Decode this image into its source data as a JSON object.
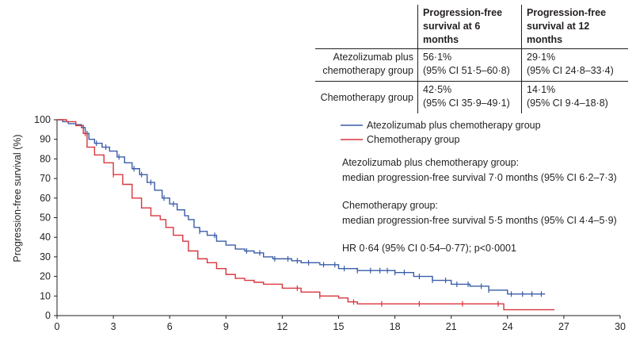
{
  "table": {
    "headers": [
      "Progression-free survival at 6 months",
      "Progression-free survival at 12 months"
    ],
    "rows": [
      {
        "label": "Atezolizumab plus chemotherapy group",
        "pfs6": "56·1%",
        "pfs6_ci": "(95% CI 51·5–60·8)",
        "pfs12": "29·1%",
        "pfs12_ci": "(95% CI 24·8–33·4)"
      },
      {
        "label": "Chemotherapy group",
        "pfs6": "42·5%",
        "pfs6_ci": "(95% CI 35·9–49·1)",
        "pfs12": "14·1%",
        "pfs12_ci": "(95% CI 9·4–18·8)"
      }
    ]
  },
  "annotations": {
    "atezo_title": "Atezolizumab plus chemotherapy group:",
    "atezo_median": "median progression-free survival  7·0 months (95% CI 6·2–7·3)",
    "chemo_title": "Chemotherapy group:",
    "chemo_median": "median progression-free survival 5·5 months (95% CI 4·4–5·9)",
    "hr": "HR 0·64 (95% CI 0·54–0·77); p<0·0001"
  },
  "chart_data": {
    "type": "line",
    "title": "",
    "xlabel": "",
    "ylabel": "Progression-free survival  (%)",
    "xlim": [
      0,
      30
    ],
    "ylim": [
      0,
      100
    ],
    "x_ticks": [
      0,
      3,
      6,
      9,
      12,
      15,
      18,
      21,
      24,
      27,
      30
    ],
    "y_ticks": [
      0,
      10,
      20,
      30,
      40,
      50,
      60,
      70,
      80,
      90,
      100
    ],
    "grid": false,
    "legend_position": "top-right",
    "series": [
      {
        "name": "Atezolizumab plus chemotherapy group",
        "color": "#3a5da8",
        "points": [
          [
            0,
            100
          ],
          [
            0.3,
            99
          ],
          [
            0.6,
            98
          ],
          [
            1.0,
            97.5
          ],
          [
            1.3,
            96
          ],
          [
            1.5,
            93
          ],
          [
            1.7,
            90
          ],
          [
            2.0,
            88
          ],
          [
            2.4,
            86
          ],
          [
            2.8,
            84
          ],
          [
            3.2,
            81
          ],
          [
            3.6,
            78
          ],
          [
            4.0,
            75
          ],
          [
            4.4,
            72
          ],
          [
            4.8,
            68
          ],
          [
            5.2,
            64
          ],
          [
            5.6,
            60
          ],
          [
            6.0,
            57
          ],
          [
            6.4,
            54
          ],
          [
            6.8,
            51
          ],
          [
            7.0,
            49
          ],
          [
            7.3,
            45
          ],
          [
            7.6,
            43
          ],
          [
            8.0,
            41
          ],
          [
            8.5,
            38
          ],
          [
            9.0,
            36
          ],
          [
            9.5,
            34
          ],
          [
            10.0,
            33
          ],
          [
            10.5,
            32
          ],
          [
            11.0,
            30
          ],
          [
            11.5,
            29
          ],
          [
            12.0,
            29
          ],
          [
            12.5,
            28
          ],
          [
            13.0,
            27
          ],
          [
            14.0,
            26
          ],
          [
            15.0,
            24
          ],
          [
            16.0,
            23
          ],
          [
            17.0,
            23
          ],
          [
            18.0,
            22
          ],
          [
            19.0,
            20
          ],
          [
            20.0,
            18
          ],
          [
            21.0,
            16
          ],
          [
            22.0,
            15
          ],
          [
            23.0,
            13
          ],
          [
            24.0,
            11
          ],
          [
            25.0,
            11
          ],
          [
            26.0,
            11
          ]
        ],
        "censor_x": [
          1.4,
          1.6,
          2.1,
          2.6,
          3.3,
          4.1,
          4.5,
          5.0,
          5.7,
          6.2,
          7.6,
          8.4,
          10.1,
          10.8,
          11.6,
          12.3,
          12.8,
          13.4,
          14.2,
          14.8,
          15.3,
          16.0,
          16.7,
          17.2,
          17.6,
          18.0,
          18.5,
          19.3,
          20.0,
          20.7,
          21.3,
          21.9,
          22.6,
          23.0,
          24.2,
          24.8,
          25.3,
          25.8
        ]
      },
      {
        "name": "Chemotherapy group",
        "color": "#d9363e",
        "points": [
          [
            0,
            100
          ],
          [
            0.5,
            99
          ],
          [
            1.0,
            97
          ],
          [
            1.4,
            93
          ],
          [
            1.6,
            86
          ],
          [
            2.0,
            82
          ],
          [
            2.5,
            78
          ],
          [
            3.0,
            72
          ],
          [
            3.5,
            67
          ],
          [
            4.0,
            60
          ],
          [
            4.5,
            55
          ],
          [
            5.0,
            51
          ],
          [
            5.5,
            49
          ],
          [
            5.8,
            45
          ],
          [
            6.2,
            41
          ],
          [
            6.7,
            38
          ],
          [
            7.0,
            33
          ],
          [
            7.5,
            29
          ],
          [
            8.0,
            27
          ],
          [
            8.5,
            24
          ],
          [
            9.0,
            21
          ],
          [
            9.5,
            19
          ],
          [
            10.0,
            18
          ],
          [
            10.5,
            17
          ],
          [
            11.0,
            16
          ],
          [
            12.0,
            14
          ],
          [
            13.0,
            12
          ],
          [
            14.0,
            10
          ],
          [
            15.0,
            9
          ],
          [
            15.5,
            7
          ],
          [
            16.0,
            6
          ],
          [
            17.0,
            6
          ],
          [
            20.0,
            6
          ],
          [
            23.8,
            6
          ],
          [
            23.8,
            3
          ],
          [
            26.5,
            3
          ]
        ],
        "censor_x": [
          1.5,
          3.0,
          12.8,
          14.0,
          15.8,
          17.3,
          19.3,
          21.6,
          23.5
        ]
      }
    ]
  }
}
